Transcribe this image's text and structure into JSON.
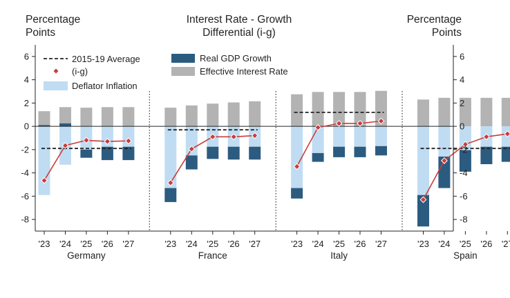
{
  "chart_data": {
    "type": "bar",
    "title": "Interest Rate - Growth Differential (i-g)",
    "title_lines": [
      "Interest Rate - Growth",
      "Differential (i-g)"
    ],
    "left_axis_label": [
      "Percentage",
      "Points"
    ],
    "right_axis_label": [
      "Percentage",
      "Points"
    ],
    "ylim": [
      -9,
      7
    ],
    "yticks": [
      -8,
      -6,
      -4,
      -2,
      0,
      2,
      4,
      6
    ],
    "ytick_labels": [
      "-8",
      "-6",
      "-4",
      "-2",
      "0",
      "2",
      "4",
      "6"
    ],
    "legend": {
      "placement": "top",
      "avg_label": "2015-19 Average",
      "ig_label": "(i-g)",
      "deflator_label": "Deflator Inflation",
      "gdp_label": "Real GDP Growth",
      "interest_label": "Effective Interest Rate"
    },
    "colors": {
      "interest": "#b3b3b3",
      "deflator": "#bfdcf2",
      "gdp": "#2c5b80",
      "ig_line": "#c93c3c",
      "avg_line": "#222222"
    },
    "groups": [
      {
        "name": "Germany",
        "years": [
          "'23",
          "'24",
          "'25",
          "'26",
          "'27"
        ],
        "interest_rate": [
          1.3,
          1.65,
          1.6,
          1.65,
          1.65
        ],
        "deflator_inflation": [
          -5.9,
          -3.3,
          -2.0,
          -1.75,
          -1.75
        ],
        "real_gdp_growth": [
          0.1,
          0.25,
          -0.7,
          -1.15,
          -1.15
        ],
        "ig": [
          -4.65,
          -1.65,
          -1.2,
          -1.3,
          -1.25
        ],
        "avg_2015_19": -1.9
      },
      {
        "name": "France",
        "years": [
          "'23",
          "'24",
          "'25",
          "'26",
          "'27"
        ],
        "interest_rate": [
          1.6,
          1.8,
          1.95,
          2.05,
          2.15
        ],
        "deflator_inflation": [
          -5.3,
          -2.5,
          -1.75,
          -1.75,
          -1.75
        ],
        "real_gdp_growth": [
          -1.2,
          -1.2,
          -1.05,
          -1.1,
          -1.1
        ],
        "ig": [
          -4.85,
          -1.95,
          -0.9,
          -0.9,
          -0.8
        ],
        "avg_2015_19": -0.3
      },
      {
        "name": "Italy",
        "years": [
          "'23",
          "'24",
          "'25",
          "'26",
          "'27"
        ],
        "interest_rate": [
          2.75,
          2.95,
          2.95,
          2.95,
          3.05
        ],
        "deflator_inflation": [
          -5.3,
          -2.3,
          -1.75,
          -1.75,
          -1.7
        ],
        "real_gdp_growth": [
          -0.9,
          -0.75,
          -0.9,
          -0.9,
          -0.8
        ],
        "ig": [
          -3.45,
          -0.1,
          0.25,
          0.25,
          0.45
        ],
        "avg_2015_19": 1.2
      },
      {
        "name": "Spain",
        "years": [
          "'23",
          "'24",
          "'25",
          "'26",
          "'27"
        ],
        "interest_rate": [
          2.3,
          2.45,
          2.45,
          2.45,
          2.45
        ],
        "deflator_inflation": [
          -5.9,
          -2.6,
          -2.05,
          -1.75,
          -1.75
        ],
        "real_gdp_growth": [
          -2.7,
          -2.7,
          -1.85,
          -1.5,
          -1.3
        ],
        "ig": [
          -6.3,
          -2.95,
          -1.55,
          -0.9,
          -0.65
        ],
        "avg_2015_19": -1.9
      }
    ]
  }
}
